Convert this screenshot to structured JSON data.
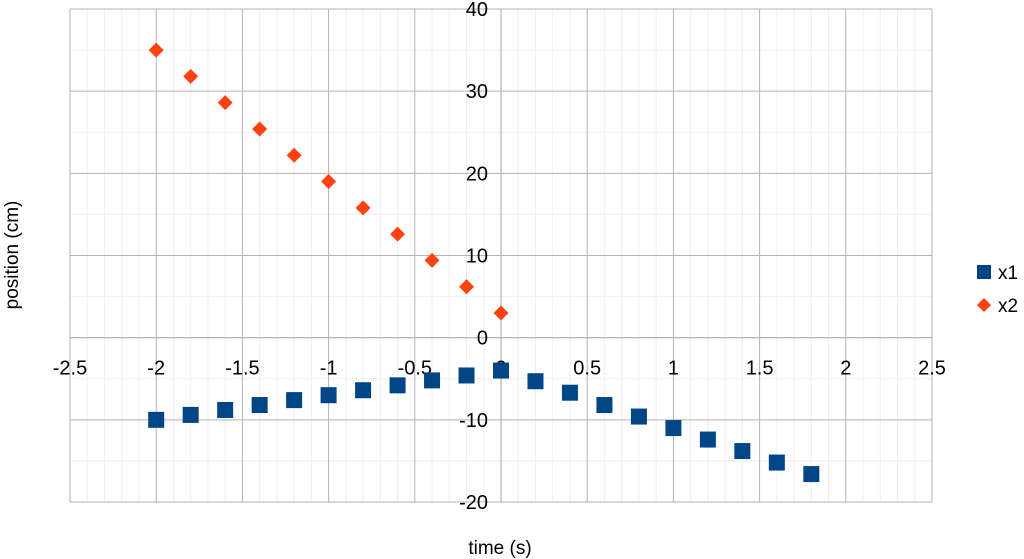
{
  "chart_data": {
    "type": "scatter",
    "xlabel": "time (s)",
    "ylabel": "position (cm)",
    "xlim": [
      -2.5,
      2.5
    ],
    "ylim": [
      -20,
      40
    ],
    "x_ticks": [
      "-2.5",
      "-2",
      "-1.5",
      "-1",
      "-0.5",
      "0",
      "0.5",
      "1",
      "1.5",
      "2",
      "2.5"
    ],
    "y_ticks": [
      "-20",
      "-10",
      "0",
      "10",
      "20",
      "30",
      "40"
    ],
    "grid": true,
    "legend_position": "right",
    "series": [
      {
        "name": "x1",
        "marker": "square",
        "color": "#004586",
        "points": [
          {
            "x": -2.0,
            "y": -10.0
          },
          {
            "x": -1.8,
            "y": -9.4
          },
          {
            "x": -1.6,
            "y": -8.8
          },
          {
            "x": -1.4,
            "y": -8.2
          },
          {
            "x": -1.2,
            "y": -7.6
          },
          {
            "x": -1.0,
            "y": -7.0
          },
          {
            "x": -0.8,
            "y": -6.4
          },
          {
            "x": -0.6,
            "y": -5.8
          },
          {
            "x": -0.4,
            "y": -5.2
          },
          {
            "x": -0.2,
            "y": -4.6
          },
          {
            "x": 0.0,
            "y": -4.0
          },
          {
            "x": 0.2,
            "y": -5.3
          },
          {
            "x": 0.4,
            "y": -6.7
          },
          {
            "x": 0.6,
            "y": -8.2
          },
          {
            "x": 0.8,
            "y": -9.6
          },
          {
            "x": 1.0,
            "y": -11.0
          },
          {
            "x": 1.2,
            "y": -12.4
          },
          {
            "x": 1.4,
            "y": -13.8
          },
          {
            "x": 1.6,
            "y": -15.2
          },
          {
            "x": 1.8,
            "y": -16.6
          }
        ]
      },
      {
        "name": "x2",
        "marker": "diamond",
        "color": "#ff420e",
        "points": [
          {
            "x": -2.0,
            "y": 35.0
          },
          {
            "x": -1.8,
            "y": 31.8
          },
          {
            "x": -1.6,
            "y": 28.6
          },
          {
            "x": -1.4,
            "y": 25.4
          },
          {
            "x": -1.2,
            "y": 22.2
          },
          {
            "x": -1.0,
            "y": 19.0
          },
          {
            "x": -0.8,
            "y": 15.8
          },
          {
            "x": -0.6,
            "y": 12.6
          },
          {
            "x": -0.4,
            "y": 9.4
          },
          {
            "x": -0.2,
            "y": 6.2
          },
          {
            "x": 0.0,
            "y": 3.0
          }
        ]
      }
    ]
  }
}
